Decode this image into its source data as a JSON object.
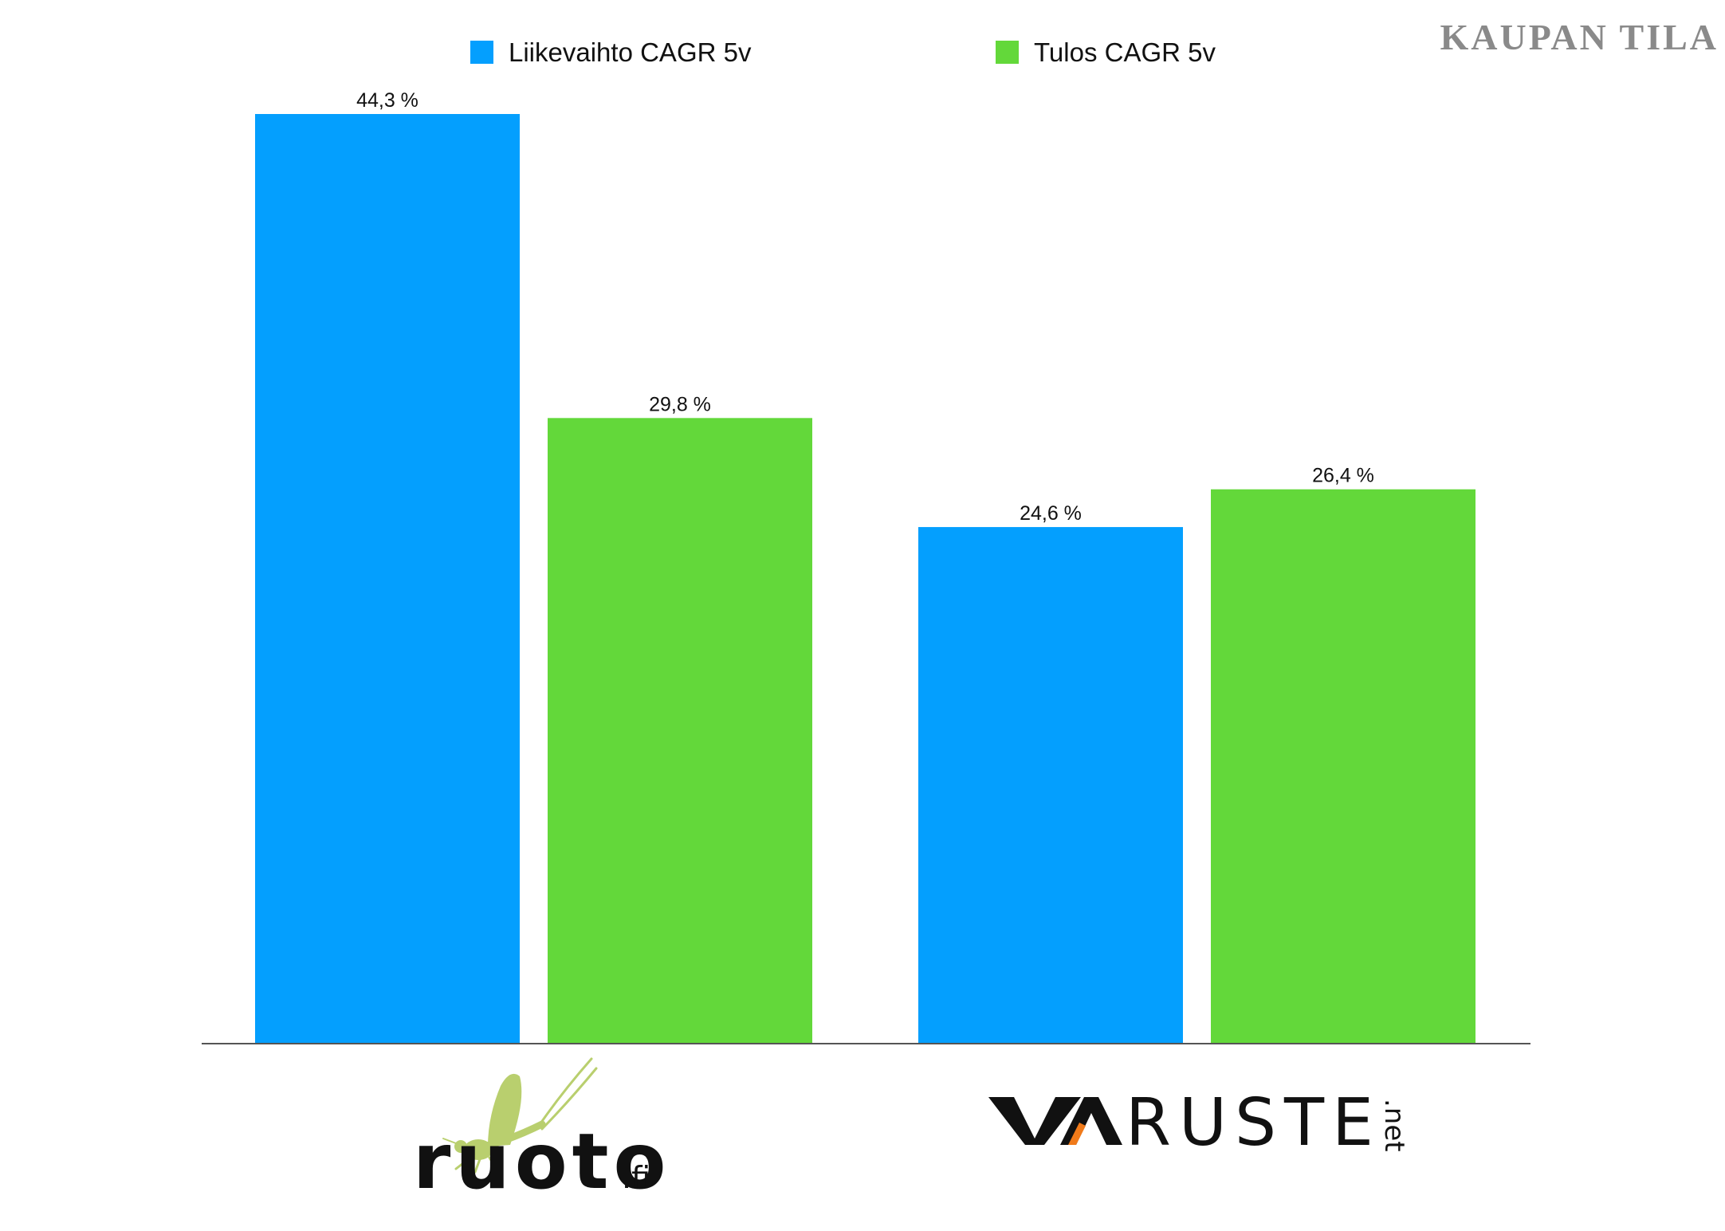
{
  "brand": "KAUPAN TILA",
  "legend": [
    {
      "label": "Liikevaihto CAGR 5v",
      "color": "#049ffe"
    },
    {
      "label": "Tulos CAGR 5v",
      "color": "#63d83a"
    }
  ],
  "logos": {
    "ruoto": {
      "text": "ruoto",
      "suffix": ".fi",
      "insect_color": "#b9cf6e",
      "text_color": "#111111"
    },
    "varuste": {
      "text_v": "V",
      "text_rest": "RUSTE",
      "suffix": ".net",
      "accent_color": "#f07a1a",
      "text_color": "#111111"
    }
  },
  "chart_data": {
    "type": "bar",
    "categories": [
      "ruoto.fi",
      "VARUSTE.net"
    ],
    "series": [
      {
        "name": "Liikevaihto CAGR 5v",
        "values": [
          44.3,
          24.6
        ],
        "labels": [
          "44,3 %",
          "24,6 %"
        ],
        "color": "#049ffe"
      },
      {
        "name": "Tulos CAGR 5v",
        "values": [
          29.8,
          26.4
        ],
        "labels": [
          "29,8 %",
          "26,4 %"
        ],
        "color": "#63d83a"
      }
    ],
    "ylim": [
      0,
      44.3
    ],
    "grid": false,
    "legend_position": "top",
    "category_labels_as_logos": true
  }
}
